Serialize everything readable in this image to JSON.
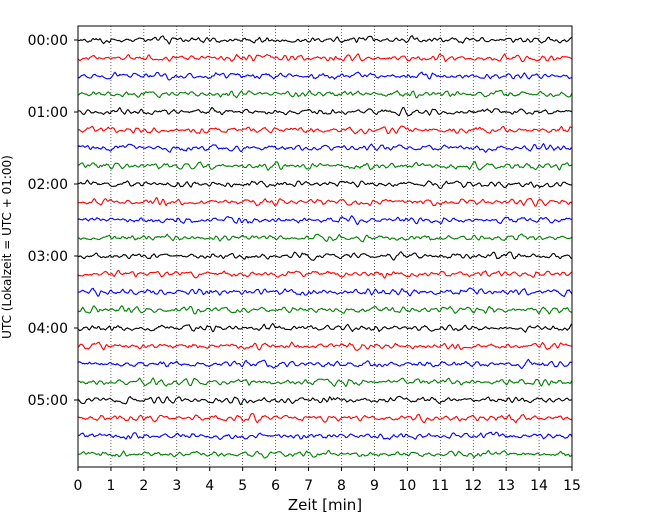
{
  "chart_data": {
    "type": "line",
    "xlabel": "Zeit  [min]",
    "ylabel": "UTC (Lokalzeit = UTC + 01:00)",
    "xlim": [
      0,
      15
    ],
    "x_ticks": [
      "0",
      "1",
      "2",
      "3",
      "4",
      "5",
      "6",
      "7",
      "8",
      "9",
      "10",
      "11",
      "12",
      "13",
      "14",
      "15"
    ],
    "y_tick_labels": [
      "00:00",
      "01:00",
      "02:00",
      "03:00",
      "04:00",
      "05:00"
    ],
    "trace_interval_minutes": 15,
    "trace_count": 24,
    "trace_colors": [
      "#000000",
      "#ff0000",
      "#0000ff",
      "#008000"
    ],
    "grid": "vertical-dotted",
    "legend": "none"
  }
}
